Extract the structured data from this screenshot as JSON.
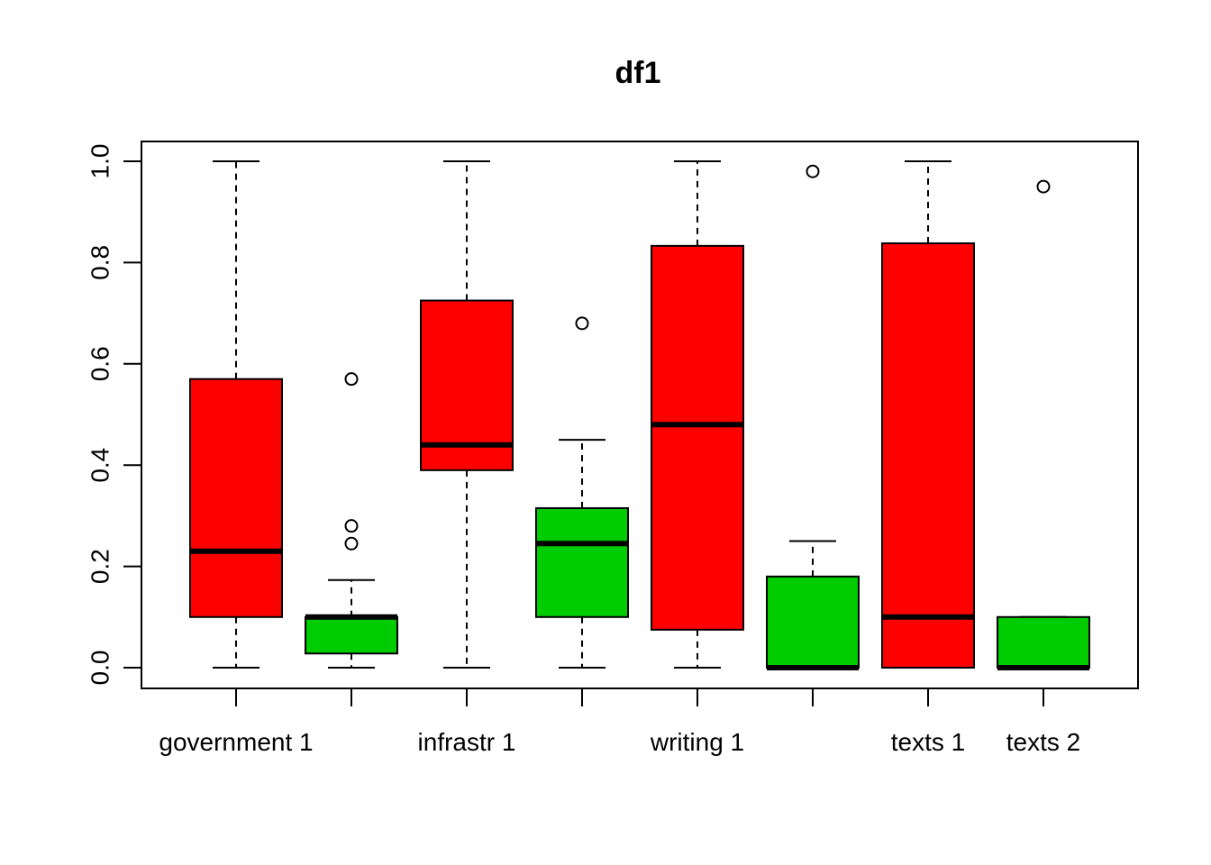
{
  "chart_data": {
    "type": "boxplot",
    "title": "df1",
    "xlabel": "",
    "ylabel": "",
    "ylim": [
      0,
      1
    ],
    "yticks": [
      "0.0",
      "0.2",
      "0.4",
      "0.6",
      "0.8",
      "1.0"
    ],
    "yticks_values": [
      0,
      0.2,
      0.4,
      0.6,
      0.8,
      1.0
    ],
    "categories": [
      "government 1",
      "",
      "infrastr 1",
      "",
      "writing 1",
      "",
      "texts 1",
      "texts 2"
    ],
    "colors": [
      "#ff0000",
      "#00cc00",
      "#ff0000",
      "#00cc00",
      "#ff0000",
      "#00cc00",
      "#ff0000",
      "#00cc00"
    ],
    "boxes": [
      {
        "min": 0.0,
        "q1": 0.1,
        "median": 0.23,
        "q3": 0.57,
        "max": 1.0,
        "outliers": []
      },
      {
        "min": 0.0,
        "q1": 0.028,
        "median": 0.1,
        "q3": 0.1,
        "max": 0.173,
        "outliers": [
          0.57,
          0.28,
          0.245
        ]
      },
      {
        "min": 0.0,
        "q1": 0.39,
        "median": 0.44,
        "q3": 0.725,
        "max": 1.0,
        "outliers": []
      },
      {
        "min": 0.0,
        "q1": 0.1,
        "median": 0.245,
        "q3": 0.315,
        "max": 0.45,
        "outliers": [
          0.68
        ]
      },
      {
        "min": 0.0,
        "q1": 0.075,
        "median": 0.48,
        "q3": 0.833,
        "max": 1.0,
        "outliers": []
      },
      {
        "min": 0.0,
        "q1": 0.0,
        "median": 0.0,
        "q3": 0.18,
        "max": 0.25,
        "outliers": [
          0.98
        ]
      },
      {
        "min": 0.0,
        "q1": 0.0,
        "median": 0.1,
        "q3": 0.838,
        "max": 1.0,
        "outliers": []
      },
      {
        "min": 0.0,
        "q1": 0.0,
        "median": 0.0,
        "q3": 0.1,
        "max": 0.1,
        "outliers": [
          0.95
        ]
      }
    ],
    "grid": false,
    "legend": "none"
  }
}
